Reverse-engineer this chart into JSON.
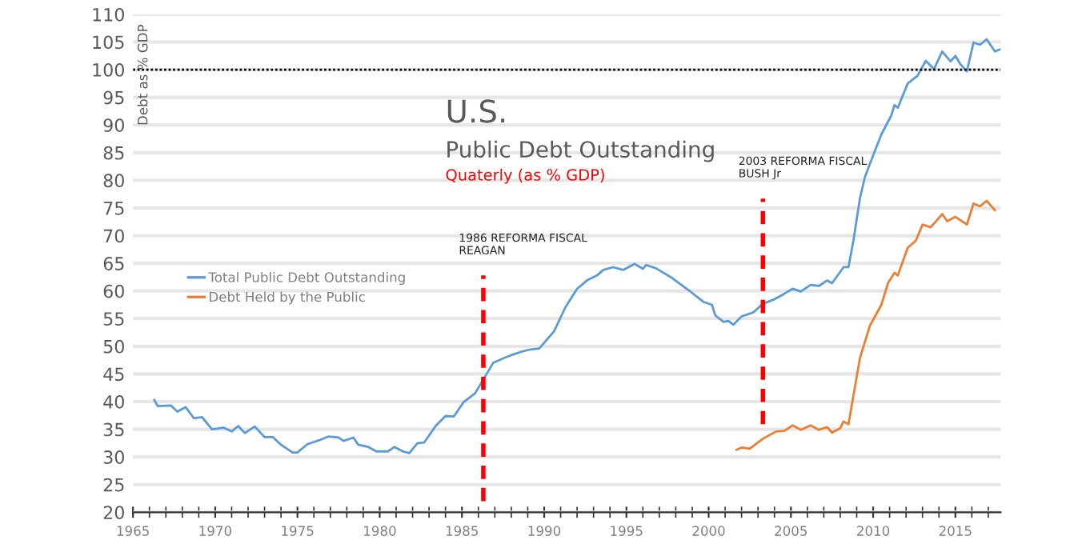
{
  "chart_data": {
    "type": "line",
    "title": "U.S.",
    "subtitle": "Public Debt Outstanding",
    "ylabel": "Debt as % GDP",
    "annotations": [
      "Quaterly (as % GDP)",
      {
        "text": "1986 REFORMA FISCAL\nREAGAN",
        "x": 1986.3,
        "y": 62.8
      },
      {
        "text": "2003 REFORMA FISCAL\nBUSH Jr",
        "x": 2003.3,
        "y": 76.7
      }
    ],
    "series": [
      {
        "name": "Total Public Debt Outstanding",
        "color": "#5b9bd5",
        "x": [
          1966.3,
          1966.5,
          1967.3,
          1967.7,
          1968.2,
          1968.7,
          1969.2,
          1969.8,
          1970.5,
          1971.0,
          1971.4,
          1971.8,
          1972.4,
          1973.0,
          1973.5,
          1974.0,
          1974.7,
          1975.0,
          1975.6,
          1976.3,
          1976.9,
          1977.5,
          1977.8,
          1978.4,
          1978.7,
          1979.3,
          1979.8,
          1980.5,
          1980.9,
          1981.4,
          1981.8,
          1982.3,
          1982.7,
          1983.4,
          1984.0,
          1984.5,
          1985.1,
          1985.5,
          1985.8,
          1986.3,
          1986.9,
          1987.5,
          1988.0,
          1988.6,
          1989.1,
          1989.7,
          1990.6,
          1991.3,
          1992.0,
          1992.6,
          1993.2,
          1993.6,
          1994.2,
          1994.8,
          1995.5,
          1996.0,
          1996.2,
          1996.8,
          1997.8,
          1998.8,
          1999.7,
          2000.2,
          2000.4,
          2000.9,
          2001.2,
          2001.5,
          2002.0,
          2002.7,
          2003.3,
          2004.0,
          2004.6,
          2005.1,
          2005.6,
          2006.2,
          2006.7,
          2007.2,
          2007.5,
          2008.2,
          2008.5,
          2008.8,
          2009.2,
          2009.5,
          2010.0,
          2010.5,
          2011.1,
          2011.3,
          2011.5,
          2012.1,
          2012.7,
          2013.2,
          2013.7,
          2014.2,
          2014.7,
          2015.0,
          2015.3,
          2015.7,
          2016.1,
          2016.5,
          2016.9,
          2017.4,
          2017.75
        ],
        "values": [
          40.3,
          39.2,
          39.3,
          38.2,
          39.0,
          37.0,
          37.2,
          35.0,
          35.3,
          34.6,
          35.6,
          34.3,
          35.5,
          33.6,
          33.6,
          32.2,
          30.8,
          30.8,
          32.3,
          33.0,
          33.7,
          33.5,
          32.9,
          33.5,
          32.2,
          31.8,
          31.0,
          31.0,
          31.8,
          31.0,
          30.7,
          32.5,
          32.6,
          35.6,
          37.4,
          37.3,
          39.9,
          40.8,
          41.5,
          44.0,
          47.0,
          47.8,
          48.4,
          49.0,
          49.4,
          49.6,
          52.7,
          57.1,
          60.4,
          61.9,
          62.8,
          63.8,
          64.3,
          63.8,
          64.9,
          64.0,
          64.7,
          64.1,
          62.3,
          60.1,
          58.0,
          57.5,
          55.6,
          54.4,
          54.6,
          53.9,
          55.4,
          56.1,
          57.7,
          58.5,
          59.5,
          60.4,
          59.9,
          61.1,
          60.9,
          61.9,
          61.4,
          64.3,
          64.3,
          69.1,
          76.8,
          80.6,
          84.5,
          88.3,
          91.7,
          93.6,
          93.1,
          97.5,
          98.9,
          101.6,
          100.1,
          103.3,
          101.5,
          102.5,
          101.0,
          99.7,
          104.9,
          104.5,
          105.5,
          103.3,
          103.7
        ]
      },
      {
        "name": "Debt Held by the Public",
        "color": "#ed7d31",
        "x": [
          2001.7,
          2002.0,
          2002.5,
          2003.3,
          2004.1,
          2004.6,
          2005.1,
          2005.6,
          2006.2,
          2006.7,
          2007.2,
          2007.5,
          2008.0,
          2008.2,
          2008.5,
          2009.2,
          2009.8,
          2010.5,
          2010.9,
          2011.3,
          2011.5,
          2012.1,
          2012.6,
          2013.0,
          2013.5,
          2014.2,
          2014.5,
          2015.0,
          2015.7,
          2016.1,
          2016.5,
          2016.9,
          2017.4
        ],
        "values": [
          31.3,
          31.7,
          31.5,
          33.3,
          34.6,
          34.7,
          35.7,
          34.9,
          35.7,
          34.9,
          35.4,
          34.4,
          35.2,
          36.4,
          35.9,
          47.9,
          53.7,
          57.5,
          61.4,
          63.3,
          62.8,
          67.8,
          69.1,
          72.0,
          71.5,
          73.9,
          72.6,
          73.4,
          72.0,
          75.8,
          75.3,
          76.3,
          74.6
        ]
      },
      {
        "color": "#ff0000",
        "line_style": "dashed",
        "x": [
          1986.3,
          1986.3
        ],
        "values": [
          22,
          62.8
        ]
      },
      {
        "color": "#ff0000",
        "line_style": "dashed",
        "x": [
          2003.3,
          2003.3
        ],
        "values": [
          35.9,
          76.7
        ]
      }
    ],
    "ref_lines": [
      {
        "axis": "y",
        "value": 100,
        "color": "#000000",
        "line_style": "dotted"
      }
    ],
    "xlim": [
      1965,
      2017.75
    ],
    "xticks": [
      1965,
      1970,
      1975,
      1980,
      1985,
      1990,
      1995,
      2000,
      2005,
      2010,
      2015
    ],
    "ylim": [
      20,
      110
    ],
    "yticks": [
      20,
      25,
      30,
      35,
      40,
      45,
      50,
      55,
      60,
      65,
      70,
      75,
      80,
      85,
      90,
      95,
      100,
      105,
      110
    ],
    "grid": "y",
    "legend": "left"
  }
}
